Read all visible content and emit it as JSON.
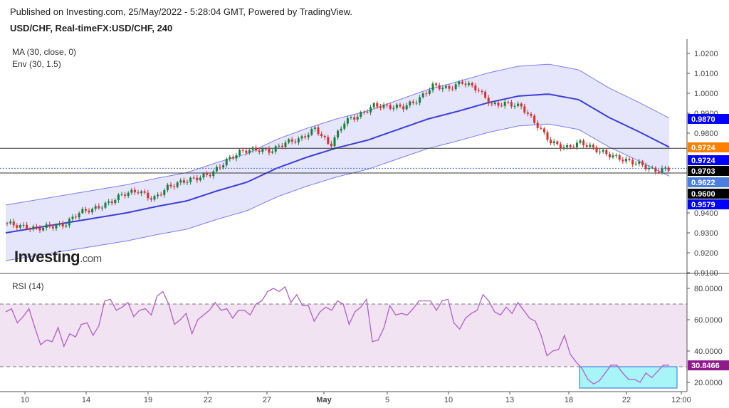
{
  "header": {
    "published": "Published on Investing.com, 25/May/2022 - 5:28:04 GMT, Powered by TradingView.",
    "symbol": "USD/CHF, Real-timeFX:USD/CHF, 240"
  },
  "legend": {
    "ma": "MA (30, close, 0)",
    "env": "Env (30, 1.5)",
    "rsi": "RSI (14)"
  },
  "logo": {
    "main": "Investing",
    "suffix": ".com"
  },
  "colors": {
    "ma": "#3d3dd6",
    "envelope_fill": "#dcdcfb",
    "envelope_line": "#7c7cf0",
    "up": "#1e7d3e",
    "down": "#d63030",
    "rsi": "#b25ec8",
    "rsi_band": "#f1e3f1",
    "highlight": "#a8f5f8"
  },
  "chart_data": [
    {
      "type": "candlestick",
      "title": "USD/CHF, Real-timeFX:USD/CHF, 240",
      "ylim": [
        0.91,
        1.02
      ],
      "y_ticks": [
        "1.0200",
        "1.0100",
        "1.0000",
        "0.9900",
        "0.9800",
        "0.9400",
        "0.9300",
        "0.9200",
        "0.9100"
      ],
      "x_ticks": [
        "10",
        "14",
        "19",
        "22",
        "27",
        "May",
        "5",
        "10",
        "13",
        "18",
        "22",
        "12:00"
      ],
      "approx_close": [
        0.935,
        0.9333,
        0.932,
        0.9333,
        0.934,
        0.9404,
        0.942,
        0.945,
        0.9496,
        0.951,
        0.9468,
        0.953,
        0.9557,
        0.9575,
        0.96,
        0.9664,
        0.971,
        0.9718,
        0.971,
        0.9754,
        0.977,
        0.9825,
        0.9736,
        0.986,
        0.989,
        0.994,
        0.9932,
        0.9932,
        0.9968,
        1.004,
        1.0022,
        1.0057,
        1.002,
        0.994,
        0.995,
        0.9932,
        0.9843,
        0.9753,
        0.9725,
        0.9754,
        0.9718,
        0.9689,
        0.9664,
        0.9646,
        0.961,
        0.9622
      ],
      "ma_30": [
        0.93,
        0.9325,
        0.935,
        0.9375,
        0.94,
        0.9432,
        0.946,
        0.951,
        0.9554,
        0.9625,
        0.968,
        0.9727,
        0.9765,
        0.9818,
        0.9871,
        0.991,
        0.9953,
        0.9986,
        0.9996,
        0.9968,
        0.9879,
        0.9807,
        0.973
      ],
      "envelope_pct": 1.5,
      "price_labels": [
        {
          "value": "0.9870",
          "color": "#0000ff"
        },
        {
          "value": "0.9724",
          "color": "#ff7f00"
        },
        {
          "value": "0.9724",
          "color": "#0000ff"
        },
        {
          "value": "0.9703",
          "color": "#000000"
        },
        {
          "value": "0.9622",
          "color": "#4a7fe0"
        },
        {
          "value": "0.9600",
          "color": "#000000"
        },
        {
          "value": "0.9579",
          "color": "#0000ff"
        }
      ],
      "horizontal_lines": [
        0.9724,
        0.96
      ],
      "last_price": 0.9622
    },
    {
      "type": "line",
      "title": "RSI (14)",
      "ylim": [
        15,
        85
      ],
      "y_ticks": [
        "80.0000",
        "60.0000",
        "40.0000",
        "20.0000"
      ],
      "bands": [
        30,
        70
      ],
      "last_label": "30.8466",
      "values": [
        65,
        67,
        58,
        62,
        67,
        55,
        44,
        47,
        46,
        55,
        43,
        51,
        49,
        57,
        58,
        50,
        56,
        72,
        73,
        66,
        68,
        71,
        62,
        66,
        67,
        63,
        75,
        78,
        70,
        57,
        60,
        64,
        51,
        60,
        63,
        66,
        71,
        66,
        67,
        61,
        66,
        66,
        63,
        70,
        72,
        78,
        80,
        78,
        81,
        71,
        76,
        69,
        69,
        59,
        65,
        68,
        66,
        72,
        70,
        57,
        65,
        68,
        73,
        46,
        47,
        55,
        69,
        63,
        64,
        63,
        67,
        72,
        72,
        72,
        66,
        72,
        73,
        58,
        54,
        61,
        64,
        66,
        76,
        72,
        65,
        63,
        68,
        64,
        71,
        66,
        61,
        59,
        50,
        37,
        40,
        41,
        50,
        38,
        33,
        29,
        22,
        19,
        21,
        26,
        31,
        31,
        26,
        22,
        22,
        20,
        26,
        23,
        27,
        31,
        31
      ]
    }
  ]
}
